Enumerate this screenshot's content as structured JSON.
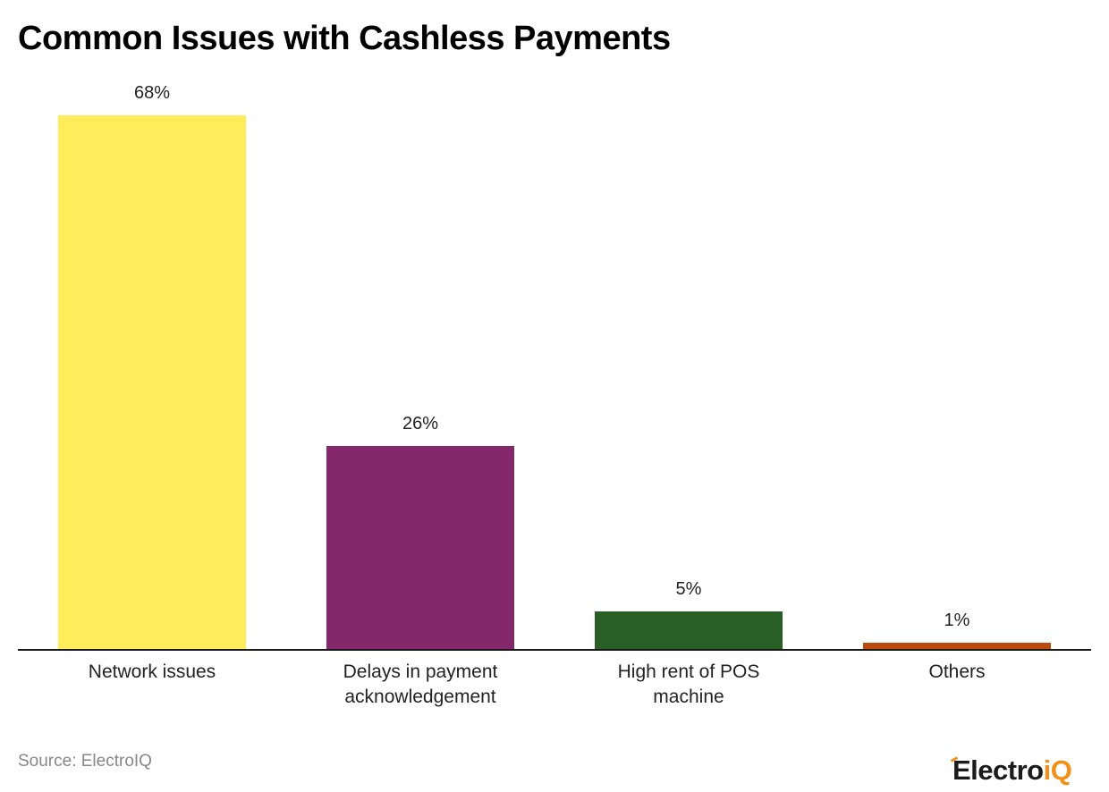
{
  "title": "Common Issues with Cashless Payments",
  "source": "Source: ElectroIQ",
  "logo": {
    "main": "Electro",
    "accent": "iQ",
    "accent_color": "#f39019"
  },
  "chart_data": {
    "type": "bar",
    "title": "Common Issues with Cashless Payments",
    "xlabel": "",
    "ylabel": "",
    "categories": [
      "Network issues",
      "Delays in payment acknowledgement",
      "High rent of POS machine",
      "Others"
    ],
    "category_lines": [
      [
        "Network issues"
      ],
      [
        "Delays in payment",
        "acknowledgement"
      ],
      [
        "High rent of POS",
        "machine"
      ],
      [
        "Others"
      ]
    ],
    "values": [
      68,
      26,
      5,
      1
    ],
    "value_labels": [
      "68%",
      "26%",
      "5%",
      "1%"
    ],
    "colors": [
      "#ffec5a",
      "#84276b",
      "#2a5e27",
      "#bb4a0c"
    ],
    "ylim": [
      0,
      68
    ],
    "grid": false,
    "legend": "none",
    "source": "ElectroIQ"
  }
}
